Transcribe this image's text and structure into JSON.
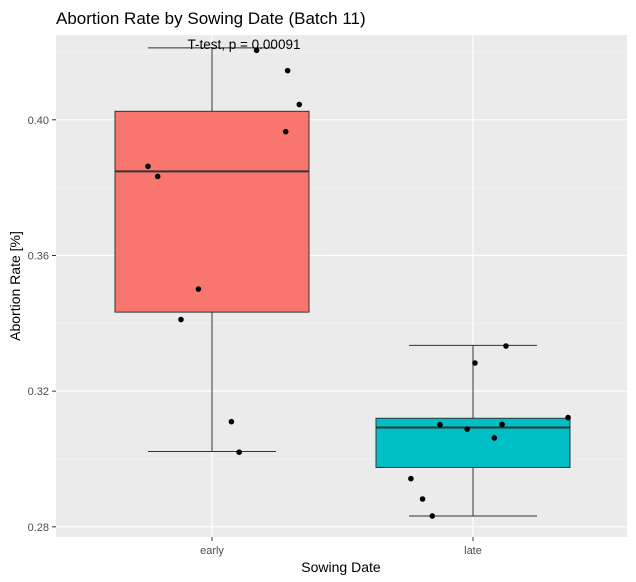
{
  "chart_data": {
    "type": "box",
    "title": "Abortion Rate by Sowing Date (Batch 11)",
    "xlabel": "Sowing Date",
    "ylabel": "Abortion Rate [%]",
    "categories": [
      "early",
      "late"
    ],
    "ylim": [
      0.277,
      0.425
    ],
    "yticks": [
      0.28,
      0.32,
      0.36,
      0.4
    ],
    "ytick_labels": [
      "0.28",
      "0.32",
      "0.36",
      "0.40"
    ],
    "grid": true,
    "legend": "none",
    "annotation": "T-test, p = 0.00091",
    "boxes": [
      {
        "category": "early",
        "color": "#f8766d",
        "whisker_low": 0.3022,
        "q1": 0.3433,
        "median": 0.3848,
        "q3": 0.4025,
        "whisker_high": 0.4212,
        "points": [
          {
            "x": -0.33,
            "y": 0.3863
          },
          {
            "x": -0.28,
            "y": 0.3833
          },
          {
            "x": -0.07,
            "y": 0.3501
          },
          {
            "x": -0.16,
            "y": 0.3411
          },
          {
            "x": 0.1,
            "y": 0.311
          },
          {
            "x": 0.14,
            "y": 0.302
          },
          {
            "x": 0.23,
            "y": 0.4205
          },
          {
            "x": 0.39,
            "y": 0.4145
          },
          {
            "x": 0.45,
            "y": 0.4045
          },
          {
            "x": 0.38,
            "y": 0.3965
          }
        ]
      },
      {
        "category": "late",
        "color": "#00bfc4",
        "whisker_low": 0.2832,
        "q1": 0.2975,
        "median": 0.3093,
        "q3": 0.312,
        "whisker_high": 0.3335,
        "points": [
          {
            "x": -0.32,
            "y": 0.2942
          },
          {
            "x": -0.26,
            "y": 0.2882
          },
          {
            "x": -0.21,
            "y": 0.2832
          },
          {
            "x": -0.17,
            "y": 0.3101
          },
          {
            "x": -0.03,
            "y": 0.3088
          },
          {
            "x": 0.11,
            "y": 0.3062
          },
          {
            "x": 0.15,
            "y": 0.3102
          },
          {
            "x": 0.01,
            "y": 0.3283
          },
          {
            "x": 0.17,
            "y": 0.3333
          },
          {
            "x": 0.49,
            "y": 0.3122
          }
        ]
      }
    ]
  }
}
